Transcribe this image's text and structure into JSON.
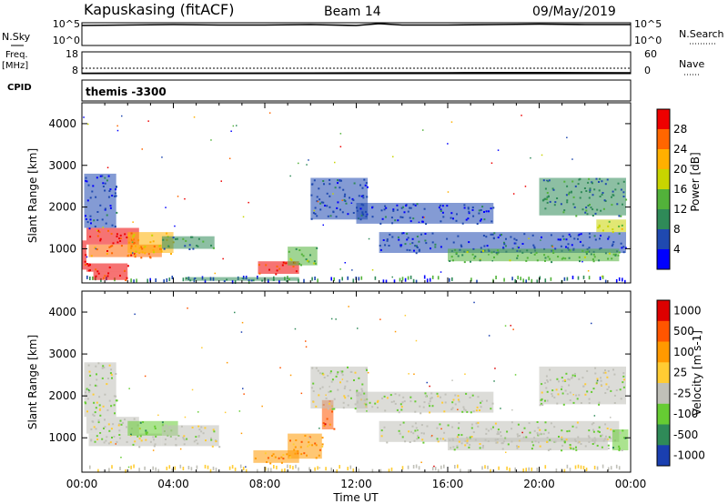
{
  "header": {
    "station": "Kapuskasing (fitACF)",
    "beam": "Beam 14",
    "date": "09/May/2019"
  },
  "left_labels": {
    "nsky": "N.Sky",
    "freq_top": "Freq.",
    "freq_unit": "[MHz]",
    "cpid": "CPID"
  },
  "right_labels": {
    "nsearch": "N.Search",
    "nave": "Nave"
  },
  "cpid_text": "themis -3300",
  "colors": {
    "power": [
      "#0000ff",
      "#1f49b0",
      "#2f8a58",
      "#52b23a",
      "#c8d400",
      "#ffb000",
      "#ff6600",
      "#ee0000"
    ],
    "velocity": [
      "#1a3fb0",
      "#2f8a58",
      "#66cc33",
      "#c0c0b8",
      "#ffcc33",
      "#ff9900",
      "#ff5500",
      "#dd0000"
    ]
  },
  "chart_data": [
    {
      "type": "line",
      "panel": "noise",
      "y_ticks_left": [
        "10^5",
        "10^0"
      ],
      "y_ticks_right": [
        "10^5",
        "10^0"
      ],
      "xlim": [
        0,
        24
      ],
      "series": [
        {
          "x": [
            0,
            2,
            4,
            6,
            8,
            10,
            12,
            13,
            14,
            16,
            18,
            20,
            22,
            24
          ],
          "values": [
            4.4,
            4.5,
            4.6,
            4.5,
            4.5,
            4.6,
            4.4,
            4.8,
            4.5,
            4.5,
            4.6,
            4.7,
            4.6,
            4.6
          ]
        }
      ]
    },
    {
      "type": "line",
      "panel": "frequency",
      "y_ticks_left": [
        "18",
        "8"
      ],
      "y_ticks_right": [
        "60",
        "0"
      ],
      "xlim": [
        0,
        24
      ],
      "series": [
        {
          "x": [
            0,
            24
          ],
          "values": [
            10.5,
            10.5
          ]
        },
        {
          "x": [
            0,
            10,
            16,
            20,
            24
          ],
          "values": [
            8.2,
            8.3,
            8.4,
            8.5,
            8.4
          ]
        }
      ]
    },
    {
      "type": "heatmap",
      "panel": "power",
      "ylabel": "Slant Range [km]",
      "zlabel": "Power [dB]",
      "y_ticks": [
        1000,
        2000,
        3000,
        4000
      ],
      "ylim": [
        180,
        4500
      ],
      "xlim": [
        0,
        24
      ],
      "colorbar_ticks": [
        "28",
        "24",
        "20",
        "16",
        "12",
        "8",
        "4"
      ],
      "regions": [
        {
          "t": [
            0.0,
            0.2
          ],
          "r": [
            500,
            1200
          ],
          "level": 7
        },
        {
          "t": [
            0.2,
            2.0
          ],
          "r": [
            450,
            650
          ],
          "level": 7
        },
        {
          "t": [
            0.2,
            2.5
          ],
          "r": [
            1100,
            1500
          ],
          "level": 7
        },
        {
          "t": [
            0.3,
            3.5
          ],
          "r": [
            800,
            1100
          ],
          "level": 6
        },
        {
          "t": [
            2.0,
            4.0
          ],
          "r": [
            900,
            1400
          ],
          "level": 5
        },
        {
          "t": [
            0.5,
            2.0
          ],
          "r": [
            250,
            450
          ],
          "level": 7
        },
        {
          "t": [
            3.5,
            5.8
          ],
          "r": [
            1000,
            1300
          ],
          "level": 2
        },
        {
          "t": [
            4.5,
            9.5
          ],
          "r": [
            230,
            320
          ],
          "level": 2
        },
        {
          "t": [
            7.7,
            9.5
          ],
          "r": [
            400,
            700
          ],
          "level": 7
        },
        {
          "t": [
            9.0,
            10.3
          ],
          "r": [
            600,
            1050
          ],
          "level": 3
        },
        {
          "t": [
            10.0,
            12.5
          ],
          "r": [
            1700,
            2700
          ],
          "level": 1
        },
        {
          "t": [
            12.0,
            18.0
          ],
          "r": [
            1600,
            2100
          ],
          "level": 1
        },
        {
          "t": [
            13.0,
            23.8
          ],
          "r": [
            900,
            1400
          ],
          "level": 1
        },
        {
          "t": [
            16.0,
            23.5
          ],
          "r": [
            700,
            1000
          ],
          "level": 3
        },
        {
          "t": [
            20.0,
            23.8
          ],
          "r": [
            1800,
            2700
          ],
          "level": 2
        },
        {
          "t": [
            0.1,
            1.5
          ],
          "r": [
            1500,
            2800
          ],
          "level": 1
        },
        {
          "t": [
            22.5,
            23.8
          ],
          "r": [
            1400,
            1700
          ],
          "level": 4
        }
      ]
    },
    {
      "type": "heatmap",
      "panel": "velocity",
      "ylabel": "Slant Range [km]",
      "zlabel": "Velocity [m s-1]",
      "xlabel": "Time UT",
      "y_ticks": [
        1000,
        2000,
        3000,
        4000
      ],
      "ylim": [
        180,
        4500
      ],
      "xlim": [
        0,
        24
      ],
      "x_ticks": [
        "00:00",
        "04:00",
        "08:00",
        "12:00",
        "16:00",
        "20:00",
        "00:00"
      ],
      "colorbar_ticks": [
        "1000",
        "500",
        "100",
        "25",
        "-25",
        "-100",
        "-500",
        "-1000"
      ],
      "regions": [
        {
          "t": [
            0.2,
            2.5
          ],
          "r": [
            1100,
            1500
          ],
          "level": 3
        },
        {
          "t": [
            0.3,
            3.5
          ],
          "r": [
            800,
            1100
          ],
          "level": 3
        },
        {
          "t": [
            2.0,
            4.2
          ],
          "r": [
            1050,
            1400
          ],
          "level": 2
        },
        {
          "t": [
            0.1,
            1.5
          ],
          "r": [
            1500,
            2800
          ],
          "level": 3
        },
        {
          "t": [
            3.5,
            6.0
          ],
          "r": [
            800,
            1300
          ],
          "level": 3
        },
        {
          "t": [
            7.5,
            9.5
          ],
          "r": [
            400,
            700
          ],
          "level": 5
        },
        {
          "t": [
            9.0,
            10.5
          ],
          "r": [
            500,
            1100
          ],
          "level": 5
        },
        {
          "t": [
            10.5,
            11.0
          ],
          "r": [
            1200,
            1900
          ],
          "level": 6
        },
        {
          "t": [
            10.0,
            12.5
          ],
          "r": [
            1700,
            2700
          ],
          "level": 3
        },
        {
          "t": [
            12.0,
            18.0
          ],
          "r": [
            1600,
            2100
          ],
          "level": 3
        },
        {
          "t": [
            13.0,
            23.5
          ],
          "r": [
            900,
            1400
          ],
          "level": 3
        },
        {
          "t": [
            16.0,
            23.0
          ],
          "r": [
            700,
            1000
          ],
          "level": 3
        },
        {
          "t": [
            20.0,
            23.8
          ],
          "r": [
            1800,
            2700
          ],
          "level": 3
        },
        {
          "t": [
            23.2,
            23.9
          ],
          "r": [
            700,
            1200
          ],
          "level": 2
        }
      ]
    }
  ]
}
